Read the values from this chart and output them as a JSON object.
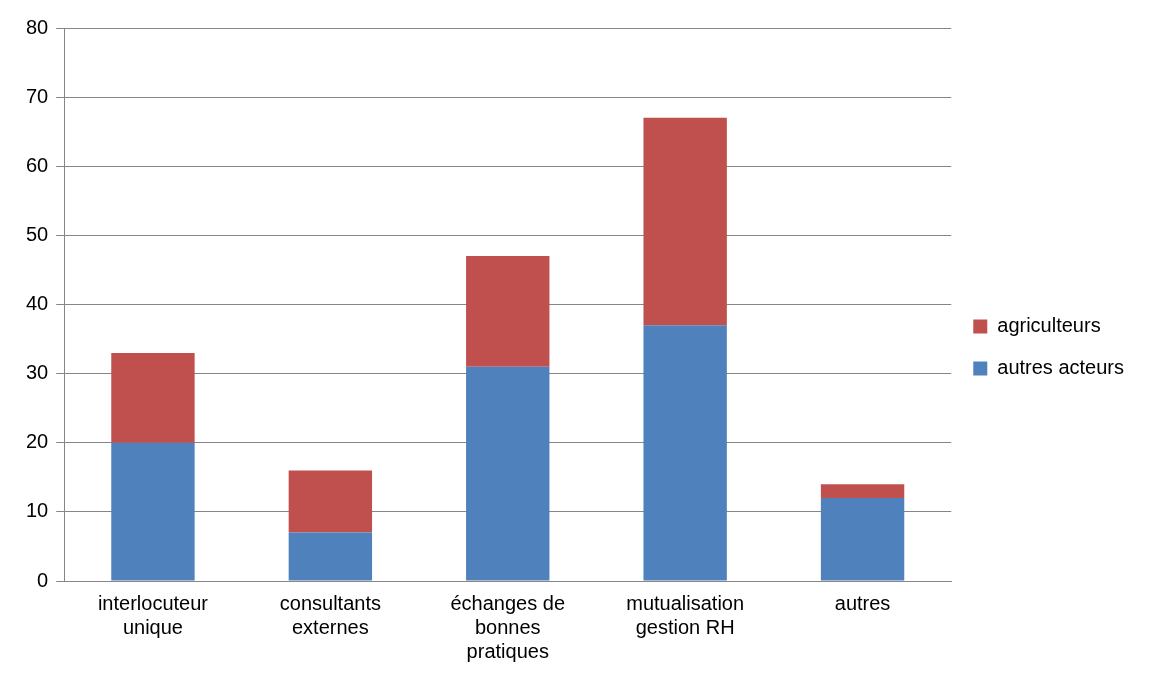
{
  "chart_data": {
    "type": "bar",
    "stacked": true,
    "categories": [
      "interlocuteur unique",
      "consultants externes",
      "échanges de bonnes pratiques",
      "mutualisation gestion RH",
      "autres"
    ],
    "series": [
      {
        "name": "autres acteurs",
        "color": "#4f81bd",
        "values": [
          20,
          7,
          31,
          37,
          12
        ]
      },
      {
        "name": "agriculteurs",
        "color": "#c0504d",
        "values": [
          13,
          9,
          16,
          30,
          2
        ]
      }
    ],
    "ylim": [
      0,
      80
    ],
    "yticks": [
      0,
      10,
      20,
      30,
      40,
      50,
      60,
      70,
      80
    ],
    "grid": "y",
    "legend": "right"
  }
}
